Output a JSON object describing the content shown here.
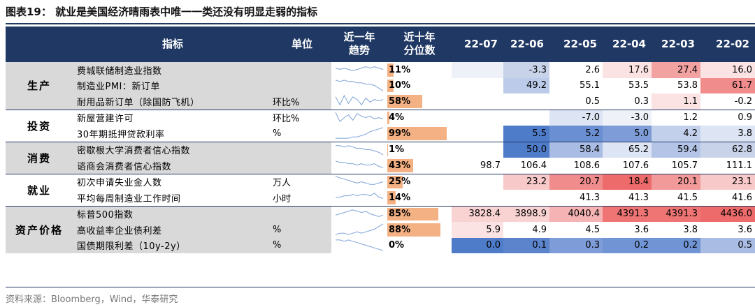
{
  "title": "图表19：   就业是美国经济晴雨表中唯一一类还没有明显走弱的指标",
  "source": "资料来源：Bloomberg，Wind，华泰研究",
  "headers": {
    "indicator": "指标",
    "unit": "单位",
    "trend_line1": "近一年",
    "trend_line2": "趋势",
    "pct_line1": "近十年",
    "pct_line2": "分位数",
    "months": [
      "22-07",
      "22-06",
      "22-05",
      "22-04",
      "22-03",
      "22-02"
    ]
  },
  "groups": [
    {
      "sector": "生产",
      "rows": [
        {
          "name": "费城联储制造业指数",
          "unit": "",
          "pct": "11%",
          "pct_value": 0.11,
          "trend": [
            6,
            5,
            6,
            5,
            4,
            5,
            6,
            7,
            6,
            7,
            6,
            5
          ],
          "values": [
            "",
            "-3.3",
            "2.6",
            "17.6",
            "27.4",
            "16.0"
          ],
          "colors": [
            "#eef1f8",
            "#c8d3ea",
            "#ffffff",
            "#fbe3e3",
            "#f3a2a2",
            "#fbe3e3"
          ]
        },
        {
          "name": "制造业PMI：新订单",
          "unit": "",
          "pct": "10%",
          "pct_value": 0.1,
          "trend": [
            9,
            8,
            9,
            8,
            8,
            7,
            7,
            6,
            6,
            5,
            3,
            1
          ],
          "values": [
            "",
            "49.2",
            "55.1",
            "53.5",
            "53.8",
            "61.7"
          ],
          "colors": [
            "#ffffff",
            "#bccbe9",
            "#ffffff",
            "#ffffff",
            "#ffffff",
            "#f08c8c"
          ]
        },
        {
          "name": "耐用品新订单（除国防飞机）",
          "unit": "环比%",
          "pct": "58%",
          "pct_value": 0.58,
          "trend": [
            8,
            2,
            9,
            3,
            8,
            6,
            2,
            7,
            4,
            6,
            5,
            6
          ],
          "values": [
            "",
            "",
            "0.5",
            "0.3",
            "1.1",
            "-0.2"
          ],
          "colors": [
            "#ffffff",
            "#ffffff",
            "#ffffff",
            "#ffffff",
            "#fbe3e3",
            "#ffffff"
          ]
        }
      ]
    },
    {
      "sector": "投资",
      "rows": [
        {
          "name": "新屋营建许可",
          "unit": "环比%",
          "pct": "4%",
          "pct_value": 0.04,
          "trend": [
            9,
            2,
            5,
            7,
            3,
            8,
            6,
            5,
            6,
            4,
            5,
            4
          ],
          "values": [
            "",
            "",
            "-7.0",
            "-3.0",
            "1.2",
            "0.9"
          ],
          "colors": [
            "#ffffff",
            "#ffffff",
            "#dde4f3",
            "#eef1f8",
            "#ffffff",
            "#ffffff"
          ]
        },
        {
          "name": "30年期抵押贷款利率",
          "unit": "%",
          "pct": "99%",
          "pct_value": 0.99,
          "trend": [
            1,
            1,
            1,
            1,
            2,
            2,
            3,
            4,
            6,
            7,
            8,
            9
          ],
          "values": [
            "",
            "5.5",
            "5.2",
            "5.0",
            "4.2",
            "3.8"
          ],
          "colors": [
            "#ffffff",
            "#4f7cc9",
            "#6a8fd2",
            "#7e9dd8",
            "#c3d0ec",
            "#dde4f3"
          ]
        }
      ]
    },
    {
      "sector": "消费",
      "rows": [
        {
          "name": "密歇根大学消费者信心指数",
          "unit": "",
          "pct": "1%",
          "pct_value": 0.01,
          "trend": [
            8,
            8,
            7,
            8,
            7,
            6,
            6,
            5,
            5,
            4,
            3,
            1
          ],
          "values": [
            "",
            "50.0",
            "58.4",
            "65.2",
            "59.4",
            "62.8"
          ],
          "colors": [
            "#ffffff",
            "#4f7cc9",
            "#a9bde4",
            "#dde4f3",
            "#b3c4e7",
            "#c8d3ea"
          ]
        },
        {
          "name": "谘商会消费者信心指数",
          "unit": "",
          "pct": "43%",
          "pct_value": 0.43,
          "trend": [
            8,
            7,
            7,
            6,
            6,
            5,
            6,
            5,
            5,
            6,
            4,
            3
          ],
          "values": [
            "98.7",
            "106.4",
            "108.6",
            "107.6",
            "105.7",
            "111.1"
          ],
          "colors": [
            "#ffffff",
            "#ffffff",
            "#ffffff",
            "#ffffff",
            "#ffffff",
            "#ffffff"
          ]
        }
      ]
    },
    {
      "sector": "就业",
      "rows": [
        {
          "name": "初次申请失业金人数",
          "unit": "万人",
          "pct": "25%",
          "pct_value": 0.25,
          "trend": [
            9,
            8,
            7,
            6,
            5,
            4,
            5,
            4,
            3,
            3,
            4,
            5
          ],
          "values": [
            "",
            "23.2",
            "20.7",
            "18.4",
            "20.1",
            "23.1"
          ],
          "colors": [
            "#ffffff",
            "#f8c9c9",
            "#f08c8c",
            "#ee6b6b",
            "#f29a9a",
            "#f8c9c9"
          ]
        },
        {
          "name": "平均每周制造业工作时间",
          "unit": "小时",
          "pct": "14%",
          "pct_value": 0.14,
          "trend": [
            5,
            5,
            6,
            6,
            7,
            6,
            7,
            7,
            6,
            8,
            5,
            4
          ],
          "values": [
            "",
            "",
            "41.3",
            "41.3",
            "41.5",
            "41.6"
          ],
          "colors": [
            "#ffffff",
            "#ffffff",
            "#ffffff",
            "#ffffff",
            "#ffffff",
            "#ffffff"
          ]
        }
      ]
    },
    {
      "sector": "资产价格",
      "rows": [
        {
          "name": "标普500指数",
          "unit": "",
          "pct": "85%",
          "pct_value": 0.85,
          "trend": [
            4,
            5,
            6,
            7,
            8,
            7,
            6,
            7,
            5,
            4,
            3,
            4
          ],
          "values": [
            "3828.4",
            "3898.9",
            "4040.4",
            "4391.3",
            "4391.3",
            "4436.0"
          ],
          "colors": [
            "#f9d2d2",
            "#f9d2d2",
            "#f5b3b3",
            "#ef7575",
            "#ef7575",
            "#ee6b6b"
          ]
        },
        {
          "name": "高收益率企业债利差",
          "unit": "%",
          "pct": "88%",
          "pct_value": 0.88,
          "trend": [
            1,
            2,
            2,
            1,
            2,
            3,
            2,
            3,
            4,
            5,
            7,
            9
          ],
          "values": [
            "5.9",
            "4.9",
            "4.5",
            "3.6",
            "3.8",
            "3.6"
          ],
          "colors": [
            "#fbe3e3",
            "#ffffff",
            "#ffffff",
            "#ffffff",
            "#ffffff",
            "#ffffff"
          ]
        },
        {
          "name": "国债期限利差（10y-2y）",
          "unit": "%",
          "pct": "0%",
          "pct_value": 0.0,
          "trend": [
            9,
            9,
            8,
            9,
            8,
            7,
            6,
            5,
            4,
            3,
            2,
            1
          ],
          "values": [
            "0.0",
            "0.1",
            "0.3",
            "0.2",
            "0.2",
            "0.5"
          ],
          "colors": [
            "#4f7cc9",
            "#5b84cc",
            "#7e9dd8",
            "#7194d4",
            "#7194d4",
            "#a9bde4"
          ]
        }
      ]
    }
  ]
}
